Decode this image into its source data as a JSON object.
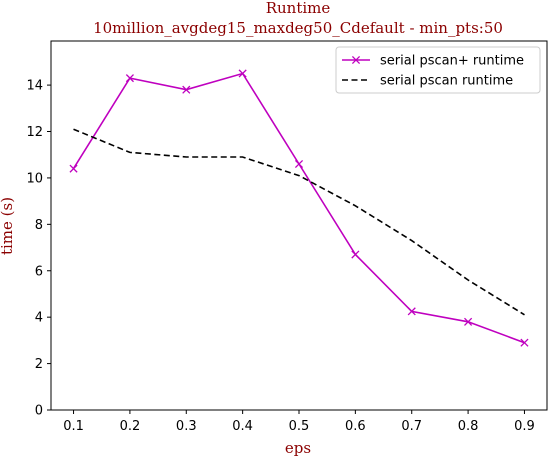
{
  "chart_data": {
    "type": "line",
    "title": "Runtime",
    "subtitle": "10million_avgdeg15_maxdeg50_Cdefault - min_pts:50",
    "xlabel": "eps",
    "ylabel": "time (s)",
    "x": [
      0.1,
      0.2,
      0.3,
      0.4,
      0.5,
      0.6,
      0.7,
      0.8,
      0.9
    ],
    "x_tick_labels": [
      "0.1",
      "0.2",
      "0.3",
      "0.4",
      "0.5",
      "0.6",
      "0.7",
      "0.8",
      "0.9"
    ],
    "y_ticks": [
      0,
      2,
      4,
      6,
      8,
      10,
      12,
      14
    ],
    "y_tick_labels": [
      "0",
      "2",
      "4",
      "6",
      "8",
      "10",
      "12",
      "14"
    ],
    "xlim": [
      0.06,
      0.94
    ],
    "ylim": [
      0,
      15.9
    ],
    "grid": false,
    "legend_position": "top-right",
    "series": [
      {
        "name": "serial pscan+ runtime",
        "color": "#bf00bf",
        "style": "solid",
        "marker": "x",
        "values": [
          10.4,
          14.3,
          13.8,
          14.5,
          10.6,
          6.7,
          4.25,
          3.8,
          2.9
        ]
      },
      {
        "name": "serial pscan runtime",
        "color": "#000000",
        "style": "dashed",
        "marker": "none",
        "values": [
          12.1,
          11.1,
          10.9,
          10.9,
          10.1,
          8.8,
          7.3,
          5.6,
          4.1
        ]
      }
    ]
  }
}
